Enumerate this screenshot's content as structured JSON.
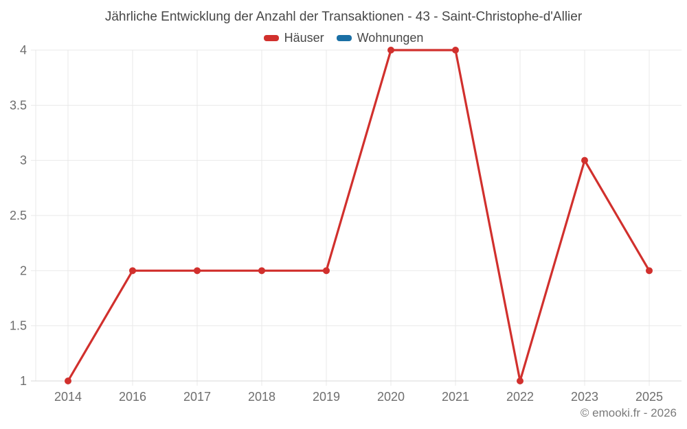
{
  "chart_data": {
    "type": "line",
    "title": "Jährliche Entwicklung der Anzahl der Transaktionen - 43 - Saint-Christophe-d'Allier",
    "categories": [
      "2014",
      "2016",
      "2017",
      "2018",
      "2019",
      "2020",
      "2021",
      "2022",
      "2023",
      "2025"
    ],
    "series": [
      {
        "name": "Häuser",
        "color": "#d1302d",
        "values": [
          1,
          2,
          2,
          2,
          2,
          4,
          4,
          1,
          3,
          2
        ]
      },
      {
        "name": "Wohnungen",
        "color": "#1a6fa5",
        "values": [
          null,
          null,
          null,
          null,
          null,
          null,
          null,
          null,
          null,
          null
        ]
      }
    ],
    "xlabel": "",
    "ylabel": "",
    "ylim": [
      1,
      4
    ],
    "yticks": [
      4,
      3.5,
      3,
      2.5,
      2,
      1.5,
      1
    ],
    "grid": true,
    "legend_position": "top",
    "marker": "circle",
    "style": {
      "grid_color": "#e9e9e9",
      "axis_color": "#d8d8d8",
      "tick_label_color": "#6e6e6e"
    }
  },
  "footer": {
    "credit": "© emooki.fr - 2026"
  }
}
